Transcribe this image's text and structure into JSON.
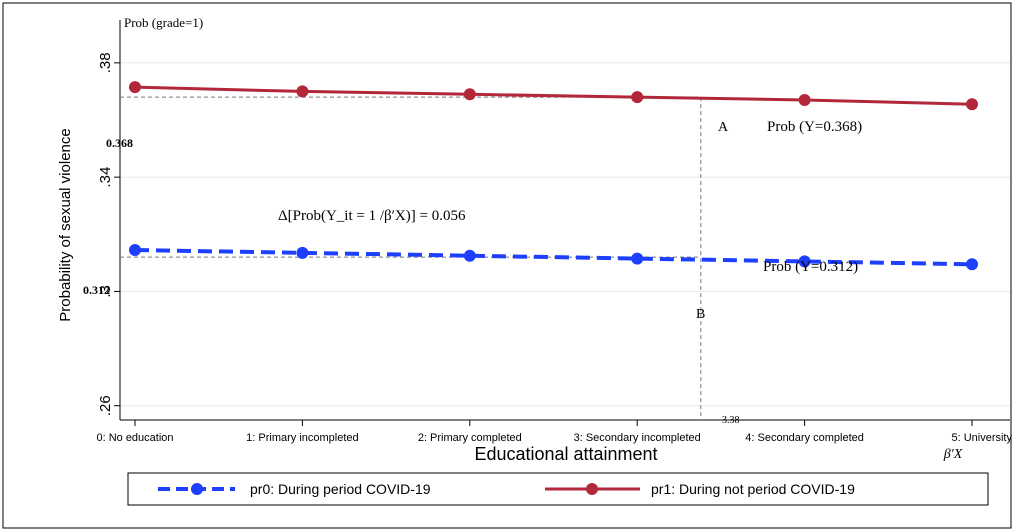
{
  "chart_data": {
    "type": "line",
    "title": "Prob (grade=1)",
    "xlabel": "Educational attainment",
    "xlabel_secondary": "β′X",
    "ylabel": "Probability of sexual violence",
    "ylim": [
      0.255,
      0.395
    ],
    "yticks": [
      ".26",
      ".3",
      ".34",
      ".38"
    ],
    "ytick_values": [
      0.26,
      0.3,
      0.34,
      0.38
    ],
    "categories": [
      "0: No education",
      "1: Primary incompleted",
      "2: Primary completed",
      "3: Secondary incompleted",
      "4: Secondary completed",
      "5: University"
    ],
    "series": [
      {
        "name": "pr0: During period COVID-19",
        "color": "#1f3fff",
        "style": "dashed",
        "values": [
          0.3145,
          0.3135,
          0.3125,
          0.3115,
          0.3105,
          0.3095
        ]
      },
      {
        "name": "pr1: During not period COVID-19",
        "color": "#b2283a",
        "style": "solid",
        "values": [
          0.3715,
          0.37,
          0.369,
          0.368,
          0.367,
          0.3655
        ]
      }
    ],
    "annotations": {
      "label_a": "A",
      "label_b": "B",
      "prob_a": "Prob (Y=0.368)",
      "prob_b": "Prob (Y=0.312)",
      "ref_upper": "0.368",
      "ref_lower": "0.312",
      "ref_upper_value": 0.368,
      "ref_lower_value": 0.312,
      "ref_x_label": "3.38",
      "ref_x_value": 3.38,
      "delta": "Δ[Prob(Y_it = 1 /β′X)] = 0.056"
    },
    "legend_position": "bottom",
    "grid": true
  }
}
